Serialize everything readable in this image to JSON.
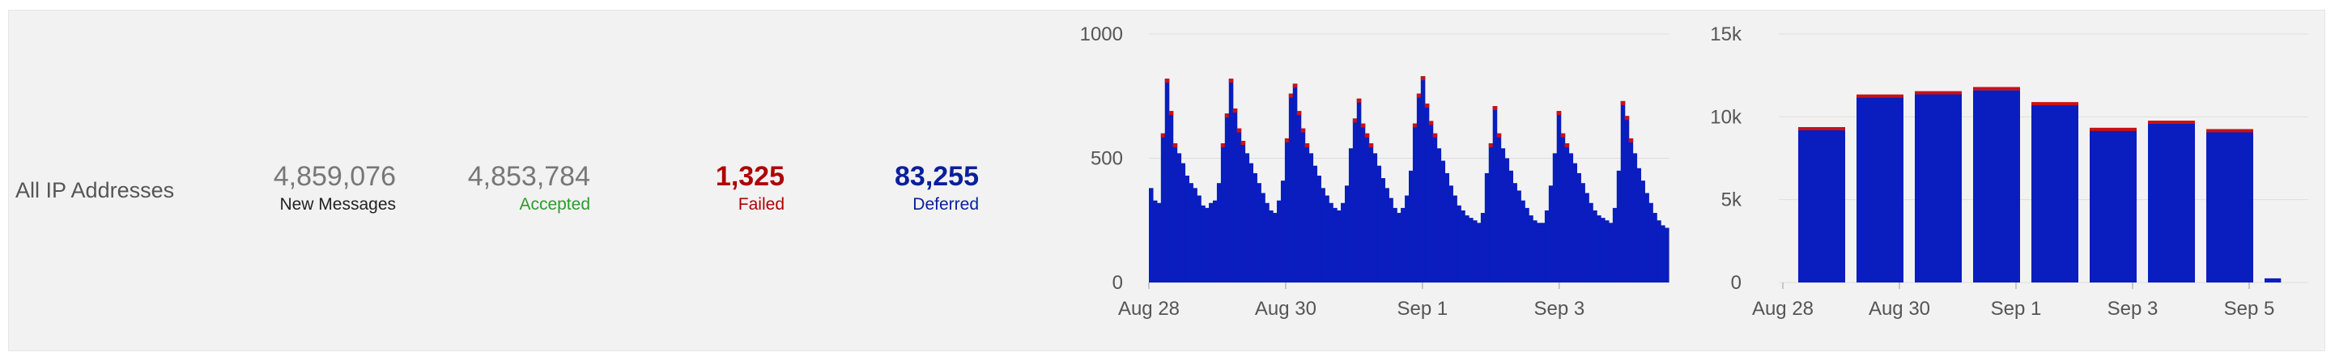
{
  "row": {
    "label": "All IP Addresses"
  },
  "stats": {
    "new_messages": {
      "value": "4,859,076",
      "caption": "New Messages"
    },
    "accepted": {
      "value": "4,853,784",
      "caption": "Accepted"
    },
    "failed": {
      "value": "1,325",
      "caption": "Failed"
    },
    "deferred": {
      "value": "83,255",
      "caption": "Deferred"
    }
  },
  "colors": {
    "new_messages_value": "#777777",
    "new_messages_caption": "#222222",
    "accepted_value": "#777777",
    "accepted_caption": "#2a9d2a",
    "failed": "#b00000",
    "deferred": "#0a1f9c",
    "bar_accepted": "#0a1dbf",
    "bar_failed": "#cc1111",
    "grid": "#dddddd"
  },
  "chart_data": [
    {
      "type": "area",
      "title": "",
      "xlabel": "",
      "ylabel": "",
      "ylim": [
        0,
        1000
      ],
      "y_ticks": [
        "0",
        "500",
        "1000"
      ],
      "x_ticks": [
        "Aug 28",
        "Aug 30",
        "Sep 1",
        "Sep 3"
      ],
      "x_tick_days": [
        0,
        2,
        4,
        6
      ],
      "x_range_days": [
        0,
        7.6
      ],
      "grid": true,
      "series": [
        {
          "values": [
            380,
            330,
            320,
            600,
            820,
            690,
            560,
            520,
            480,
            430,
            400,
            380,
            350,
            310,
            300,
            320,
            330,
            400,
            560,
            680,
            820,
            700,
            620,
            570,
            520,
            480,
            440,
            400,
            360,
            320,
            290,
            280,
            330,
            410,
            580,
            760,
            800,
            690,
            620,
            560,
            520,
            470,
            430,
            380,
            350,
            320,
            300,
            290,
            320,
            390,
            540,
            660,
            740,
            640,
            600,
            560,
            520,
            470,
            420,
            380,
            340,
            300,
            280,
            300,
            350,
            450,
            640,
            760,
            830,
            720,
            650,
            600,
            540,
            490,
            440,
            390,
            350,
            310,
            290,
            270,
            260,
            250,
            240,
            280,
            440,
            560,
            710,
            600,
            540,
            500,
            450,
            400,
            370,
            330,
            300,
            270,
            250,
            240,
            240,
            290,
            390,
            520,
            690,
            600,
            560,
            520,
            480,
            440,
            400,
            360,
            320,
            290,
            270,
            260,
            250,
            240,
            300,
            450,
            730,
            670,
            580,
            520,
            460,
            410,
            360,
            320,
            280,
            250,
            230,
            220
          ]
        }
      ]
    },
    {
      "type": "bar",
      "title": "",
      "xlabel": "",
      "ylabel": "",
      "ylim": [
        0,
        15000
      ],
      "y_ticks": [
        "0",
        "5k",
        "10k",
        "15k"
      ],
      "x_ticks": [
        "Aug 28",
        "Aug 30",
        "Sep 1",
        "Sep 3",
        "Sep 5"
      ],
      "x_tick_index": [
        0,
        2,
        4,
        6,
        8
      ],
      "categories": [
        "Aug 28",
        "Aug 29",
        "Aug 30",
        "Aug 31",
        "Sep 1",
        "Sep 2",
        "Sep 3",
        "Sep 4",
        "Sep 5"
      ],
      "grid": true,
      "series": [
        {
          "values": [
            9200,
            11200,
            11500,
            11600,
            10700,
            9200,
            9600,
            9100,
            250
          ]
        },
        {
          "values": [
            180,
            150,
            50,
            200,
            190,
            140,
            170,
            160,
            0
          ]
        }
      ]
    }
  ]
}
